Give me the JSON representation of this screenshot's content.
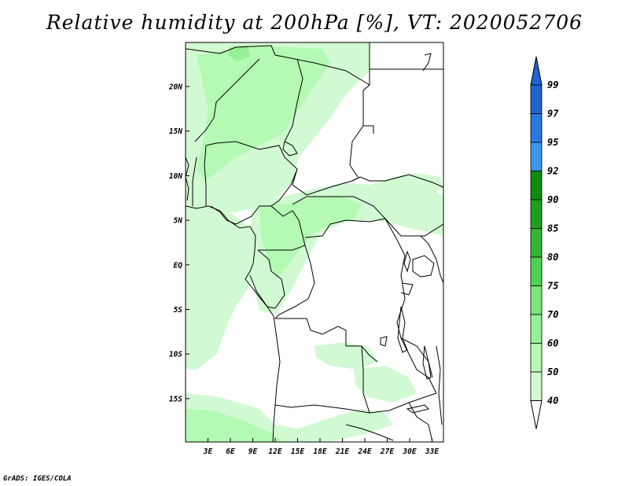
{
  "title": "Relative humidity at 200hPa [%], VT: 2020052706",
  "credit": "GrADS: IGES/COLA",
  "map": {
    "lat_labels": [
      "20N",
      "15N",
      "10N",
      "5N",
      "EQ",
      "5S",
      "10S",
      "15S"
    ],
    "lon_labels": [
      "3E",
      "6E",
      "9E",
      "12E",
      "15E",
      "18E",
      "21E",
      "24E",
      "27E",
      "30E",
      "33E"
    ]
  },
  "colorbar": {
    "levels": [
      "99",
      "97",
      "95",
      "92",
      "90",
      "85",
      "80",
      "75",
      "70",
      "60",
      "50",
      "40"
    ],
    "colors": [
      "#1e64d2",
      "#2878e1",
      "#3c96f0",
      "#0f8c0f",
      "#1ea01e",
      "#32b432",
      "#50d250",
      "#78e678",
      "#96f096",
      "#b4fab4",
      "#d2fad2",
      "#f0fff0"
    ],
    "top_arrow_color": "#1e64d2",
    "bottom_arrow_color": "#ffffff"
  }
}
